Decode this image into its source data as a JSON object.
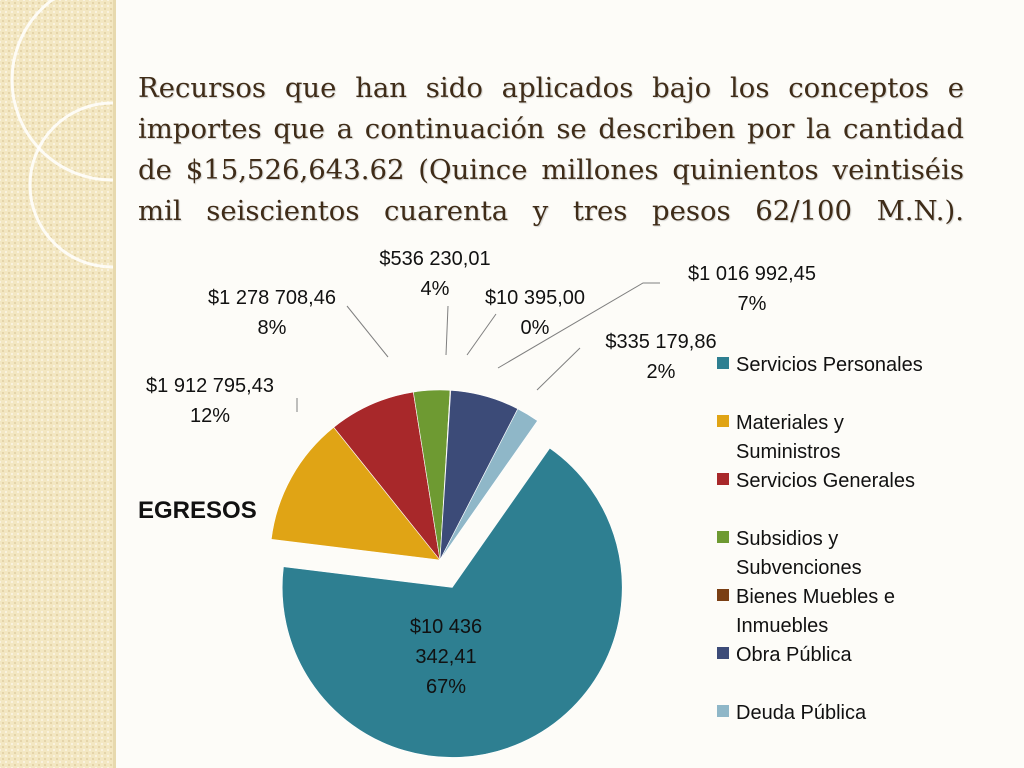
{
  "title": "Recursos que han sido aplicados bajo los conceptos e importes que a continuación se describen por la cantidad de $15,526,643.62 (Quince millones quinientos veintiséis mil seiscientos cuarenta y tres pesos 62/100 M.N.).",
  "chart_data": {
    "type": "pie",
    "chart_label": "EGRESOS",
    "series": [
      {
        "name": "Servicios Personales",
        "value": 10436342.41,
        "amount_label": "$10 436 342,41",
        "percent_label": "67%",
        "color": "#2e7f91"
      },
      {
        "name": "Materiales y Suministros",
        "value": 1912795.43,
        "amount_label": "$1 912 795,43",
        "percent_label": "12%",
        "color": "#e0a415"
      },
      {
        "name": "Servicios Generales",
        "value": 1278708.46,
        "amount_label": "$1 278 708,46",
        "percent_label": "8%",
        "color": "#a8282a"
      },
      {
        "name": "Subsidios y Subvenciones",
        "value": 536230.01,
        "amount_label": "$536 230,01",
        "percent_label": "4%",
        "color": "#6e9a32"
      },
      {
        "name": "Bienes Muebles e Inmuebles",
        "value": 10395.0,
        "amount_label": "$10 395,00",
        "percent_label": "0%",
        "color": "#7a3f14"
      },
      {
        "name": "Obra Pública",
        "value": 1016992.45,
        "amount_label": "$1 016 992,45",
        "percent_label": "7%",
        "color": "#3c4b78"
      },
      {
        "name": "Deuda Pública",
        "value": 335179.86,
        "amount_label": "$335 179,86",
        "percent_label": "2%",
        "color": "#8fb7c8"
      }
    ],
    "legend_position": "right"
  }
}
